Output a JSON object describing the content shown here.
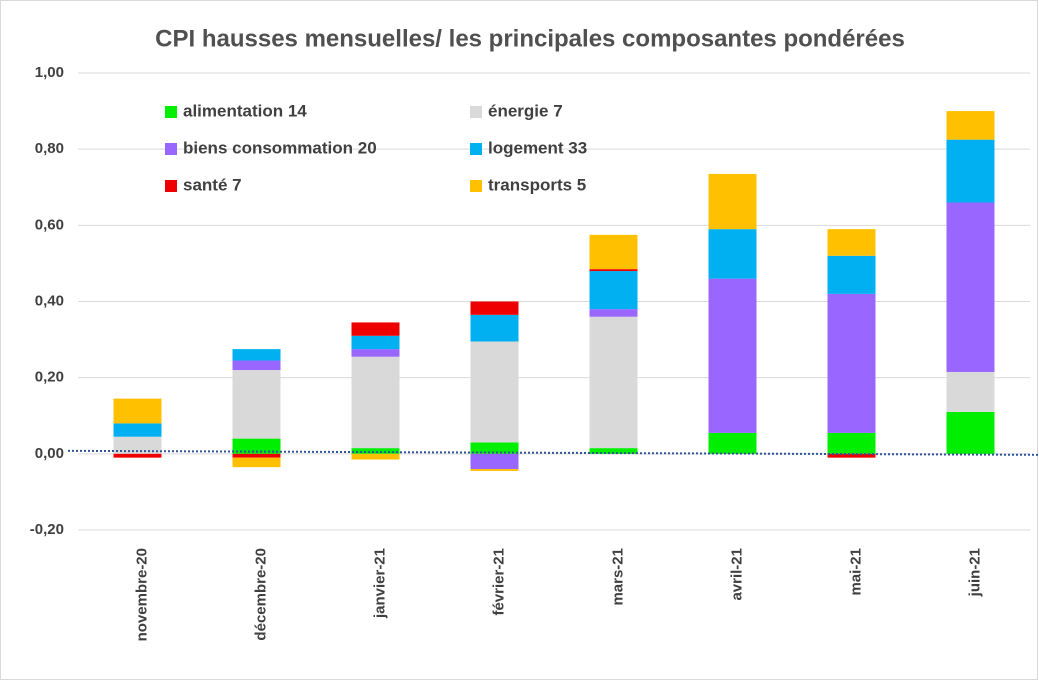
{
  "chart_data": {
    "type": "stacked_bar",
    "title": "CPI  hausses mensuelles/ les principales composantes pondérées",
    "categories": [
      "novembre-20",
      "décembre-20",
      "janvier-21",
      "février-21",
      "mars-21",
      "avril-21",
      "mai-21",
      "juin-21"
    ],
    "series": [
      {
        "name": "alimentation 14",
        "color": "#00ee00",
        "values": [
          0,
          0.04,
          0.015,
          0.03,
          0.015,
          0.055,
          0.055,
          0.11
        ]
      },
      {
        "name": "énergie 7",
        "color": "#d9d9d9",
        "values": [
          0.045,
          0.18,
          0.24,
          0.265,
          0.345,
          0,
          0,
          0.105
        ]
      },
      {
        "name": "biens consommation 20",
        "color": "#9966ff",
        "values": [
          0,
          0.025,
          0.02,
          -0.04,
          0.02,
          0.405,
          0.365,
          0.445
        ]
      },
      {
        "name": "logement 33",
        "color": "#00b0f0",
        "values": [
          0.035,
          0.03,
          0.035,
          0.07,
          0.1,
          0.13,
          0.1,
          0.165
        ]
      },
      {
        "name": "santé 7",
        "color": "#ee0000",
        "values": [
          -0.01,
          -0.01,
          0.035,
          0.035,
          0.005,
          0,
          -0.01,
          0
        ]
      },
      {
        "name": "transports 5",
        "color": "#ffc000",
        "values": [
          0.065,
          -0.025,
          -0.015,
          -0.005,
          0.09,
          0.145,
          0.07,
          0.075
        ]
      }
    ],
    "ylim": [
      -0.2,
      1.0
    ],
    "yticks": [
      {
        "value": -0.2,
        "label": "-0,20"
      },
      {
        "value": 0,
        "label": "0,00"
      },
      {
        "value": 0.2,
        "label": "0,20"
      },
      {
        "value": 0.4,
        "label": "0,40"
      },
      {
        "value": 0.6,
        "label": "0,60"
      },
      {
        "value": 0.8,
        "label": "0,80"
      },
      {
        "value": 1.0,
        "label": "1,00"
      }
    ],
    "grid": true
  }
}
